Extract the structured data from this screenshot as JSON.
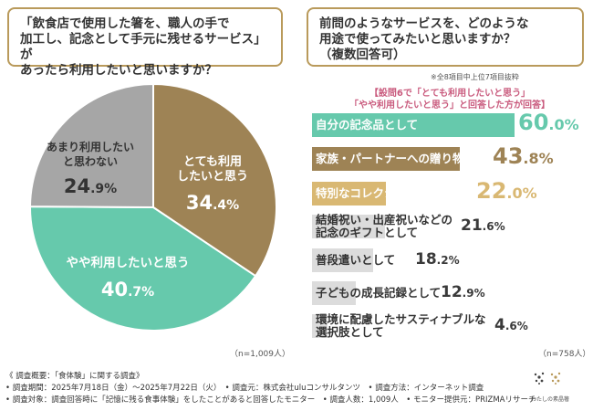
{
  "left_question": {
    "line1": "「飲食店で使用した箸を、職人の手で",
    "line2": "加工し、記念として手元に残せるサービス」が",
    "line3": "あったら利用したいと思いますか？"
  },
  "right_question": {
    "line1": "前問のようなサービスを、どのような",
    "line2": "用途で使ってみたいと思いますか？",
    "line3": "（複数回答可）"
  },
  "right_note": "※全8項目中上位7項目抜粋",
  "right_subtitle": {
    "line1": "【設問6で「とても利用したいと思う」",
    "line2": "「やや利用したいと思う」と回答した方が回答】"
  },
  "left_n": "（n=1,009人）",
  "right_n": "（n=758人）",
  "chart_data": [
    {
      "type": "pie",
      "slices": [
        {
          "label": "とても利用したいと思う",
          "label_line1": "とても利用",
          "label_line2": "したいと思う",
          "value": 34.4,
          "value_text_int": "34",
          "value_text_dec": ".4%",
          "color": "#9e8355"
        },
        {
          "label": "やや利用したいと思う",
          "value": 40.7,
          "value_text_int": "40",
          "value_text_dec": ".7%",
          "color": "#66c9ac"
        },
        {
          "label": "あまり利用したいと思わない",
          "label_line1": "あまり利用したい",
          "label_line2": "と思わない",
          "value": 24.9,
          "value_text_int": "24",
          "value_text_dec": ".9%",
          "color": "#a6a6a6"
        }
      ]
    },
    {
      "type": "bar",
      "orientation": "horizontal",
      "xlim": [
        0,
        60
      ],
      "bars": [
        {
          "label_line1": "自分の記念品として",
          "label_line2": "",
          "value": 60.0,
          "int": "60",
          "dec": ".0%",
          "color": "#66c9ac"
        },
        {
          "label_line1": "家族・パートナーへの贈り物に",
          "label_line2": "",
          "value": 43.8,
          "int": "43",
          "dec": ".8%",
          "color": "#9e8355"
        },
        {
          "label_line1": "特別なコレクションとして",
          "label_line2": "",
          "value": 22.0,
          "int": "22",
          "dec": ".0%",
          "color": "#d9b873"
        },
        {
          "label_line1": "結婚祝い・出産祝いなどの",
          "label_line2": "記念のギフトとして",
          "value": 21.6,
          "int": "21",
          "dec": ".6%",
          "color": "#dcdcdc"
        },
        {
          "label_line1": "普段遣いとして",
          "label_line2": "",
          "value": 18.2,
          "int": "18",
          "dec": ".2%",
          "color": "#dcdcdc"
        },
        {
          "label_line1": "子どもの成長記録として",
          "label_line2": "",
          "value": 12.9,
          "int": "12",
          "dec": ".9%",
          "color": "#dcdcdc"
        },
        {
          "label_line1": "環境に配慮したサスティナブルな",
          "label_line2": "選択肢として",
          "value": 4.6,
          "int": "4",
          "dec": ".6%",
          "color": "#dcdcdc"
        }
      ]
    }
  ],
  "footer": {
    "line1": "《 調査概要：「食体験」に関する調査》",
    "line2": "• 調査期間：2025年7月18日（金）～2025年7月22日（火）　• 調査元：株式会社uluコンサルタンツ　• 調査方法：インターネット調査",
    "line3": "• 調査対象：調査回答時に「記憶に残る食事体験」をしたことがあると回答したモニター　• 調査人数：1,009人　• モニター提供元：PRIZMAリサーチ"
  },
  "logo_text": "わたしの素晶箸"
}
